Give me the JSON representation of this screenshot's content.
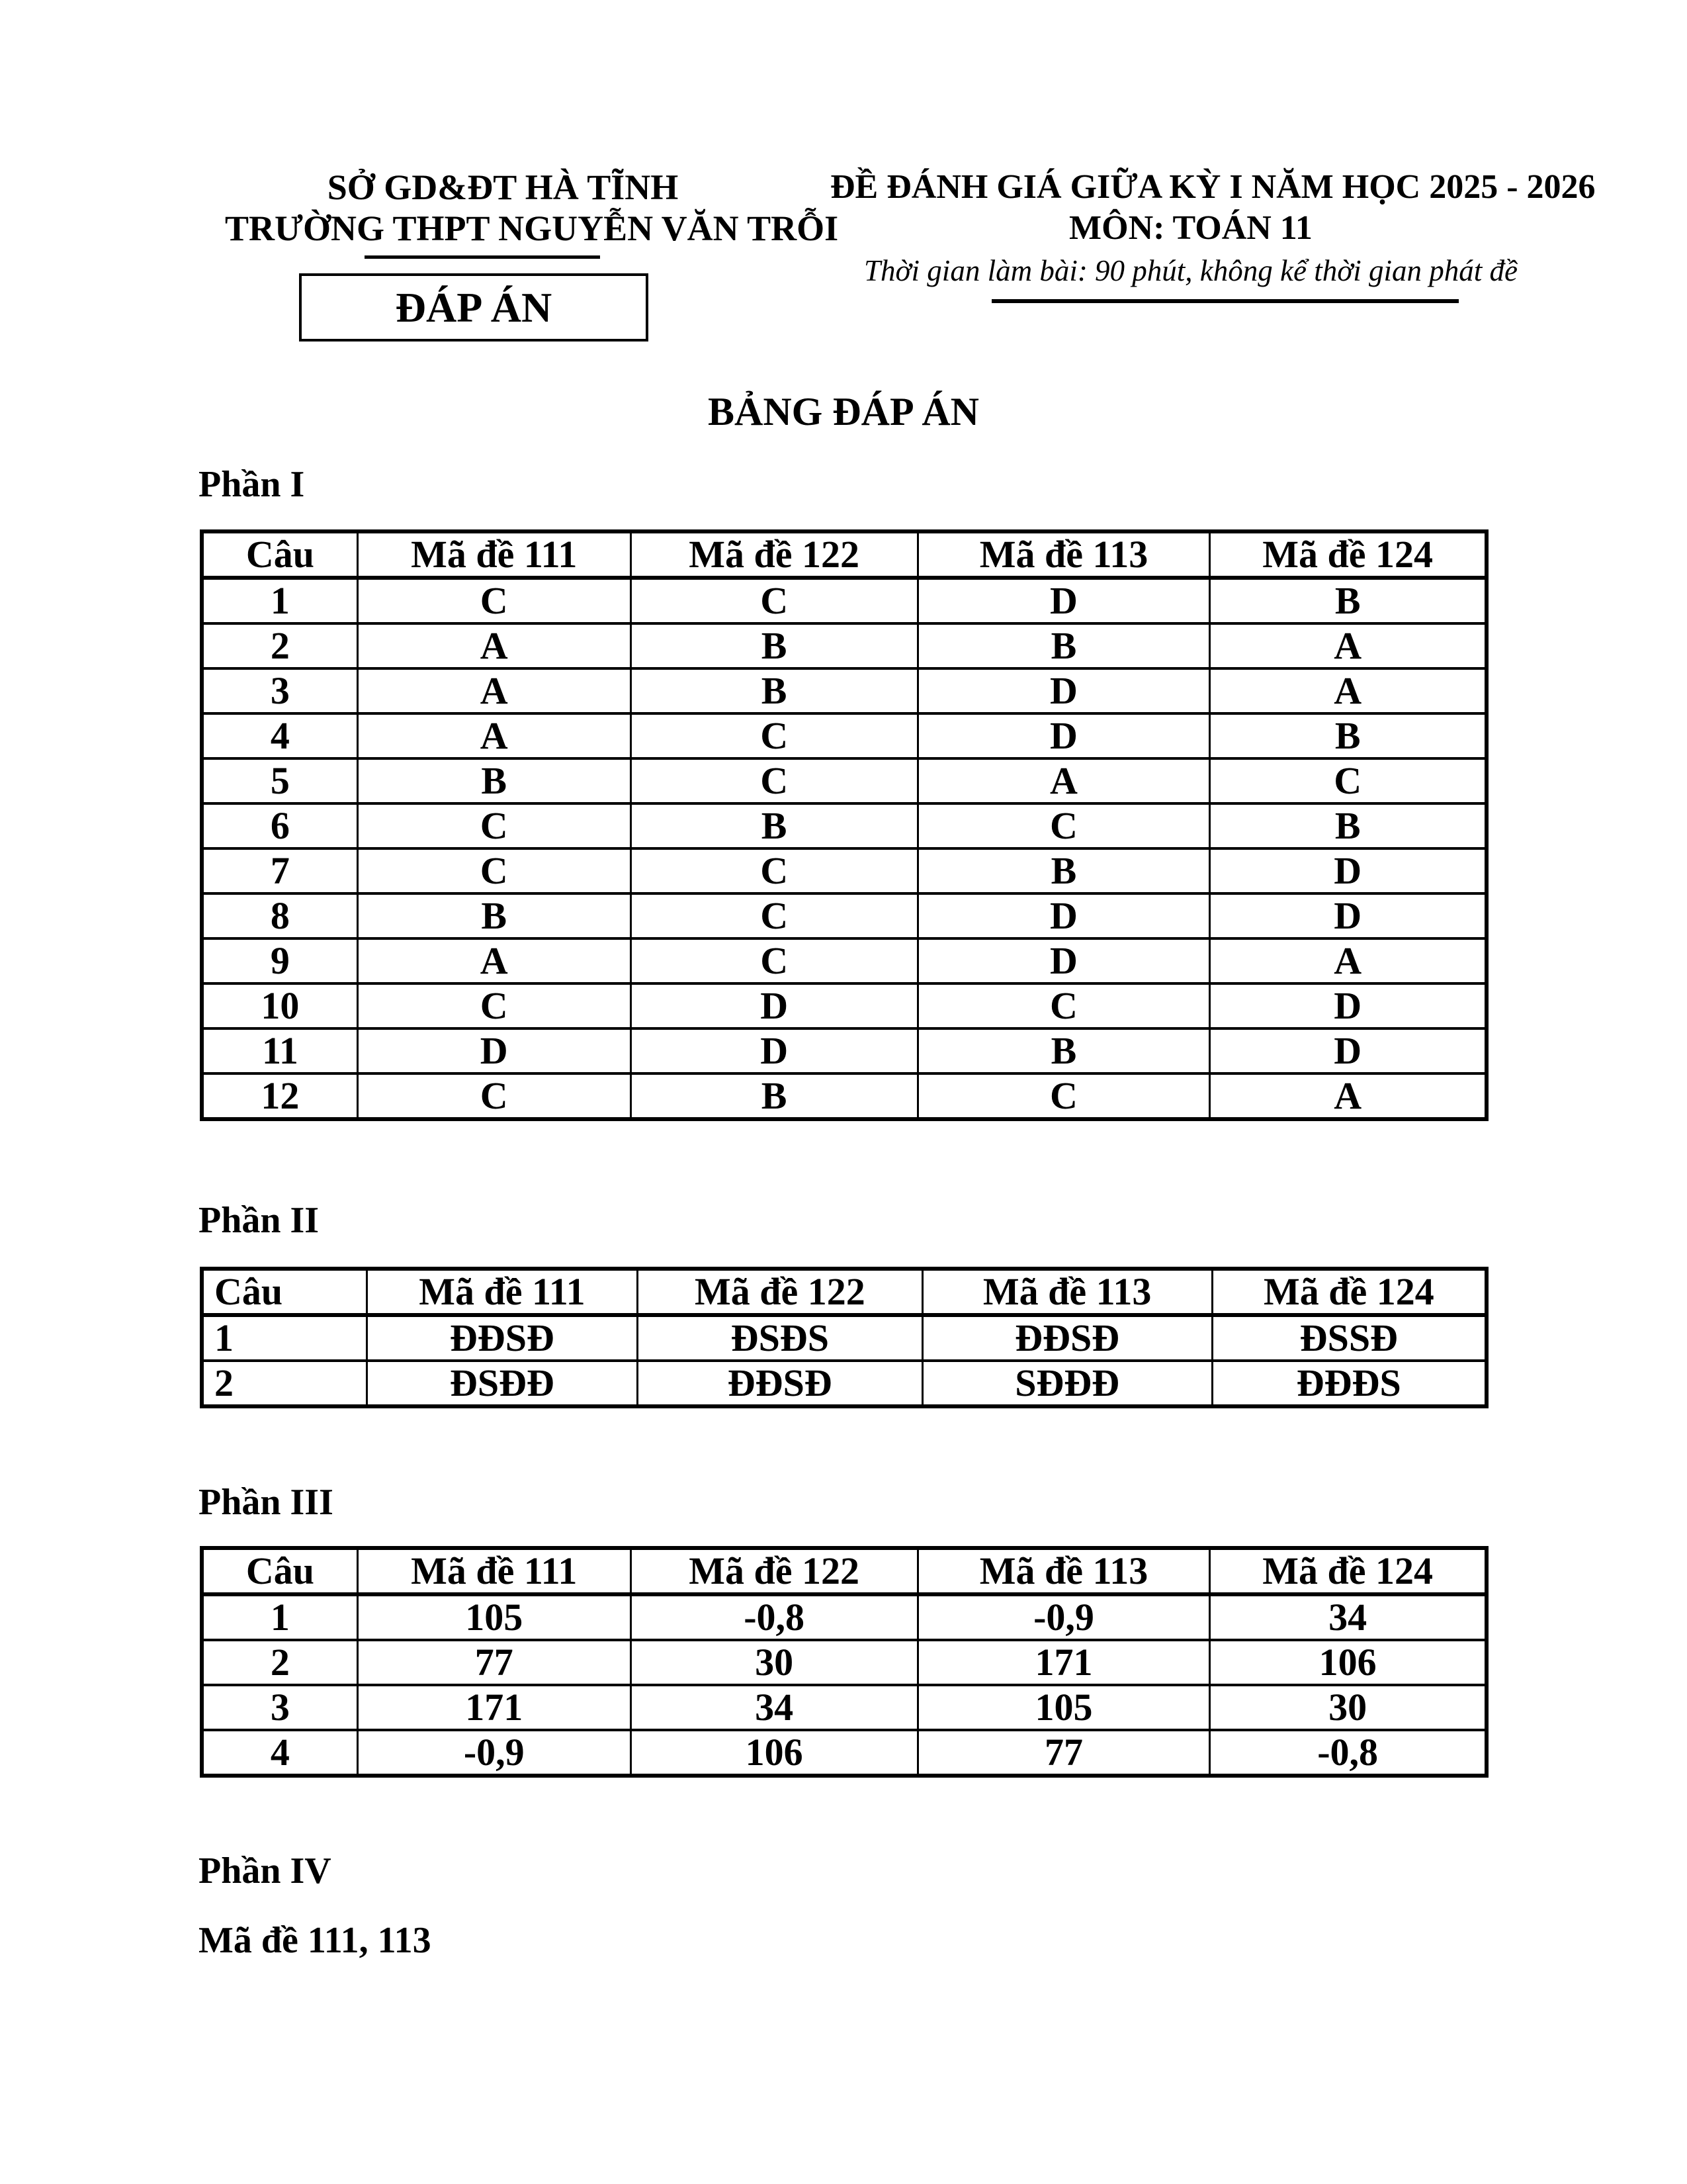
{
  "page": {
    "header_left": {
      "line1": "SỞ GD&ĐT HÀ TĨNH",
      "line2": "TRƯỜNG THPT NGUYỄN VĂN TRỖI",
      "box_label": "ĐÁP ÁN"
    },
    "header_right": {
      "line1": "ĐỀ ĐÁNH GIÁ GIỮA KỲ I NĂM HỌC 2025 - 2026",
      "line2": "MÔN: TOÁN 11",
      "line3": "Thời gian làm bài: 90 phút, không kể thời gian phát đề"
    },
    "title": "BẢNG ĐÁP ÁN"
  },
  "table_columns": [
    "Câu",
    "Mã đề 111",
    "Mã đề 122",
    "Mã đề 113",
    "Mã đề 124"
  ],
  "sections": {
    "part1": {
      "label": "Phần I",
      "rows": [
        [
          "1",
          "C",
          "C",
          "D",
          "B"
        ],
        [
          "2",
          "A",
          "B",
          "B",
          "A"
        ],
        [
          "3",
          "A",
          "B",
          "D",
          "A"
        ],
        [
          "4",
          "A",
          "C",
          "D",
          "B"
        ],
        [
          "5",
          "B",
          "C",
          "A",
          "C"
        ],
        [
          "6",
          "C",
          "B",
          "C",
          "B"
        ],
        [
          "7",
          "C",
          "C",
          "B",
          "D"
        ],
        [
          "8",
          "B",
          "C",
          "D",
          "D"
        ],
        [
          "9",
          "A",
          "C",
          "D",
          "A"
        ],
        [
          "10",
          "C",
          "D",
          "C",
          "D"
        ],
        [
          "11",
          "D",
          "D",
          "B",
          "D"
        ],
        [
          "12",
          "C",
          "B",
          "C",
          "A"
        ]
      ]
    },
    "part2": {
      "label": "Phần II",
      "rows": [
        [
          "1",
          "ĐĐSĐ",
          "ĐSĐS",
          "ĐĐSĐ",
          "ĐSSĐ"
        ],
        [
          "2",
          "ĐSĐĐ",
          "ĐĐSĐ",
          "SĐĐĐ",
          "ĐĐĐS"
        ]
      ]
    },
    "part3": {
      "label": "Phần III",
      "rows": [
        [
          "1",
          "105",
          "-0,8",
          "-0,9",
          "34"
        ],
        [
          "2",
          "77",
          "30",
          "171",
          "106"
        ],
        [
          "3",
          "171",
          "34",
          "105",
          "30"
        ],
        [
          "4",
          "-0,9",
          "106",
          "77",
          "-0,8"
        ]
      ]
    },
    "part4": {
      "label": "Phần IV",
      "note": "Mã đề 111, 113"
    }
  }
}
